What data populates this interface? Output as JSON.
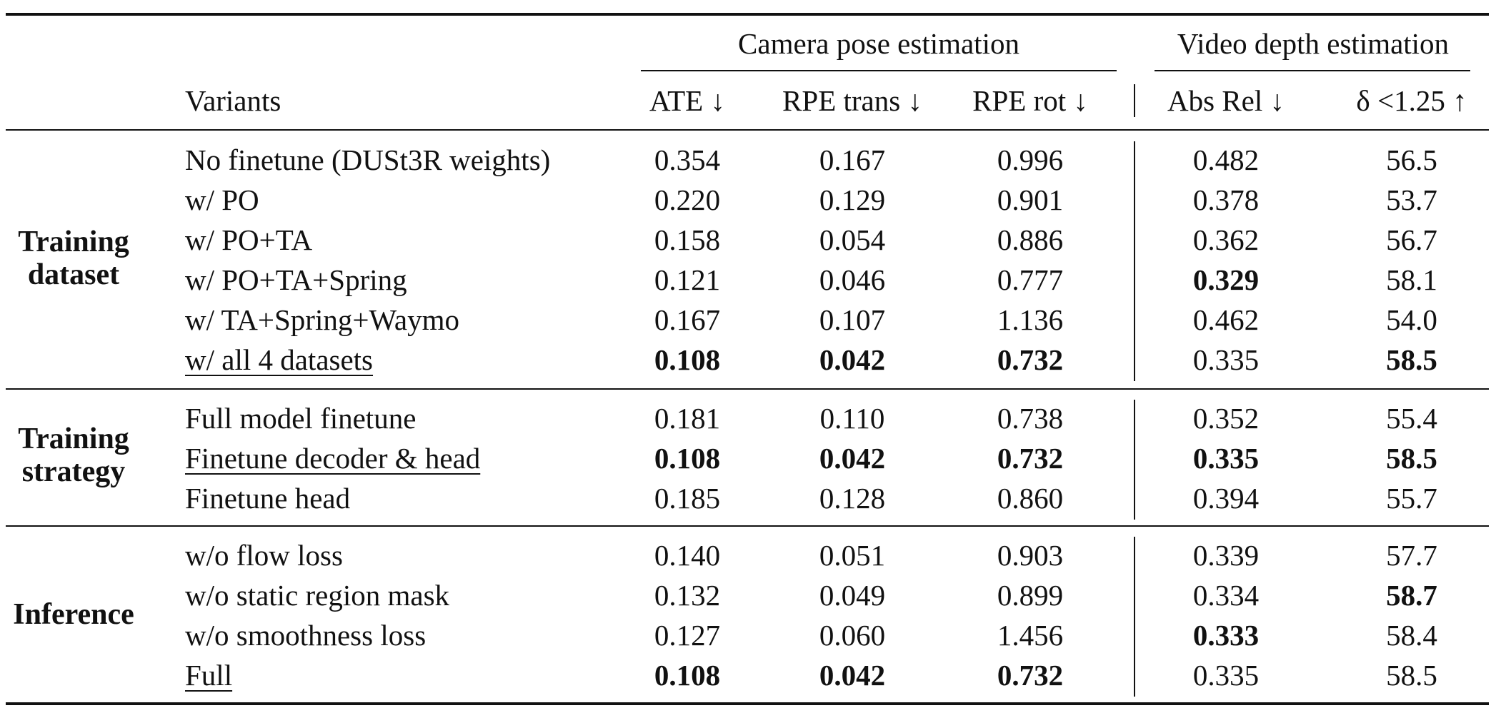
{
  "header": {
    "group_camera": "Camera pose estimation",
    "group_depth": "Video depth estimation",
    "variants": "Variants",
    "columns": [
      "ATE ↓",
      "RPE trans ↓",
      "RPE rot ↓",
      "Abs Rel ↓",
      "δ <1.25 ↑"
    ]
  },
  "sections": [
    {
      "group_lines": [
        "Training",
        "dataset"
      ],
      "rows": [
        {
          "variant": "No finetune (DUSt3R weights)",
          "values": [
            "0.354",
            "0.167",
            "0.996",
            "0.482",
            "56.5"
          ],
          "bold": [
            false,
            false,
            false,
            false,
            false
          ],
          "underline": false
        },
        {
          "variant": "w/ PO",
          "values": [
            "0.220",
            "0.129",
            "0.901",
            "0.378",
            "53.7"
          ],
          "bold": [
            false,
            false,
            false,
            false,
            false
          ],
          "underline": false
        },
        {
          "variant": "w/ PO+TA",
          "values": [
            "0.158",
            "0.054",
            "0.886",
            "0.362",
            "56.7"
          ],
          "bold": [
            false,
            false,
            false,
            false,
            false
          ],
          "underline": false
        },
        {
          "variant": "w/ PO+TA+Spring",
          "values": [
            "0.121",
            "0.046",
            "0.777",
            "0.329",
            "58.1"
          ],
          "bold": [
            false,
            false,
            false,
            true,
            false
          ],
          "underline": false
        },
        {
          "variant": "w/ TA+Spring+Waymo",
          "values": [
            "0.167",
            "0.107",
            "1.136",
            "0.462",
            "54.0"
          ],
          "bold": [
            false,
            false,
            false,
            false,
            false
          ],
          "underline": false
        },
        {
          "variant": "w/ all 4 datasets",
          "values": [
            "0.108",
            "0.042",
            "0.732",
            "0.335",
            "58.5"
          ],
          "bold": [
            true,
            true,
            true,
            false,
            true
          ],
          "underline": true
        }
      ]
    },
    {
      "group_lines": [
        "Training",
        "strategy"
      ],
      "rows": [
        {
          "variant": "Full model finetune",
          "values": [
            "0.181",
            "0.110",
            "0.738",
            "0.352",
            "55.4"
          ],
          "bold": [
            false,
            false,
            false,
            false,
            false
          ],
          "underline": false
        },
        {
          "variant": "Finetune decoder & head",
          "values": [
            "0.108",
            "0.042",
            "0.732",
            "0.335",
            "58.5"
          ],
          "bold": [
            true,
            true,
            true,
            true,
            true
          ],
          "underline": true
        },
        {
          "variant": "Finetune head",
          "values": [
            "0.185",
            "0.128",
            "0.860",
            "0.394",
            "55.7"
          ],
          "bold": [
            false,
            false,
            false,
            false,
            false
          ],
          "underline": false
        }
      ]
    },
    {
      "group_lines": [
        "Inference"
      ],
      "rows": [
        {
          "variant": "w/o flow loss",
          "values": [
            "0.140",
            "0.051",
            "0.903",
            "0.339",
            "57.7"
          ],
          "bold": [
            false,
            false,
            false,
            false,
            false
          ],
          "underline": false
        },
        {
          "variant": "w/o static region mask",
          "values": [
            "0.132",
            "0.049",
            "0.899",
            "0.334",
            "58.7"
          ],
          "bold": [
            false,
            false,
            false,
            false,
            true
          ],
          "underline": false
        },
        {
          "variant": "w/o smoothness loss",
          "values": [
            "0.127",
            "0.060",
            "1.456",
            "0.333",
            "58.4"
          ],
          "bold": [
            false,
            false,
            false,
            true,
            false
          ],
          "underline": false
        },
        {
          "variant": "Full",
          "values": [
            "0.108",
            "0.042",
            "0.732",
            "0.335",
            "58.5"
          ],
          "bold": [
            true,
            true,
            true,
            false,
            false
          ],
          "underline": true
        }
      ]
    }
  ]
}
